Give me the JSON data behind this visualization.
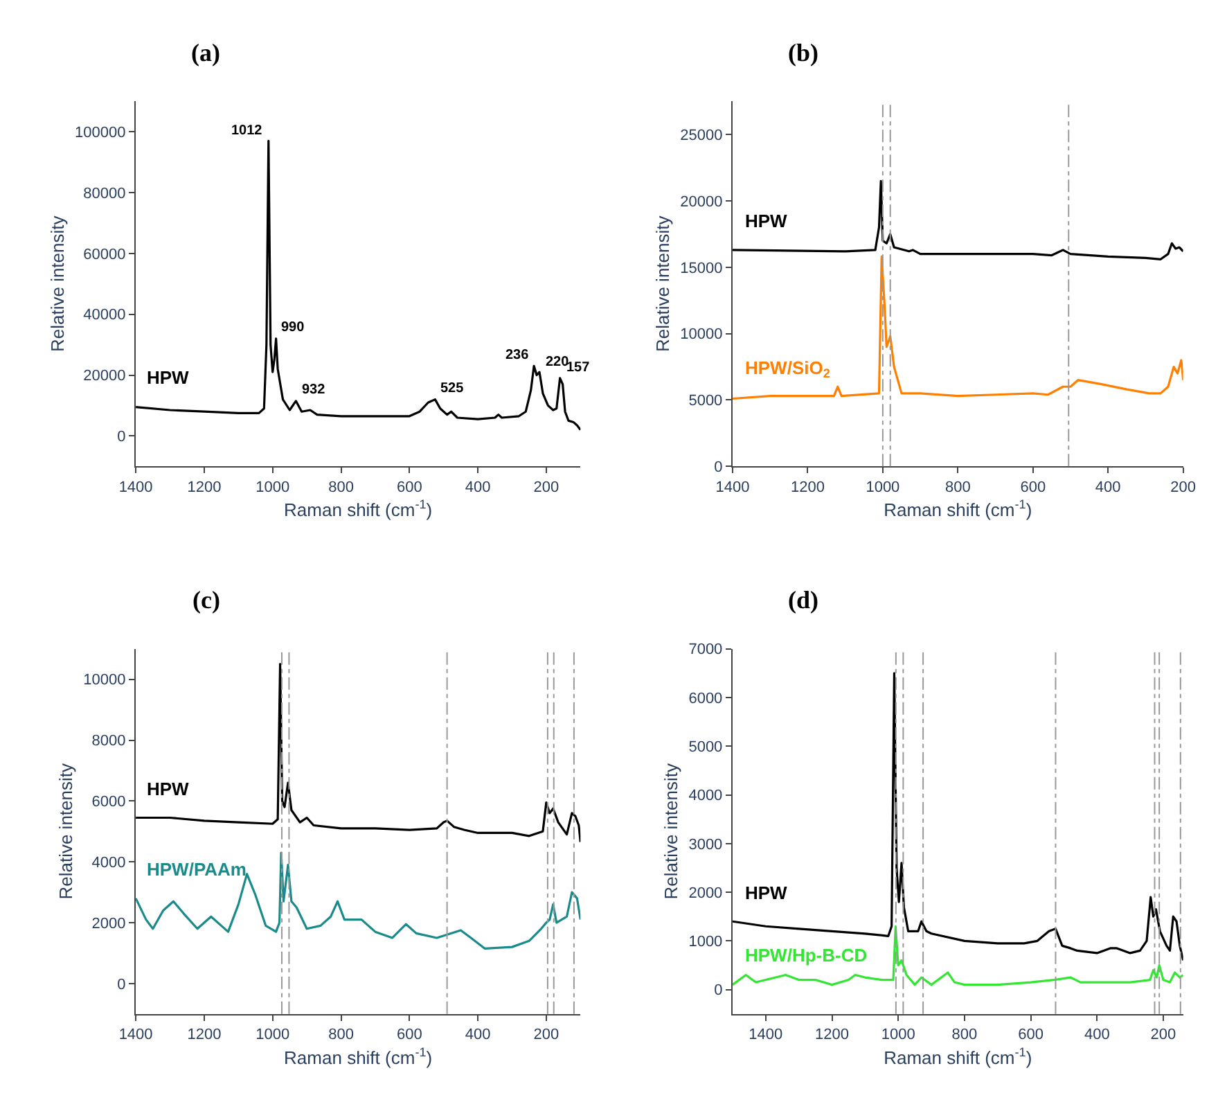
{
  "chart_data": [
    {
      "type": "line",
      "title": "(a)",
      "xlabel": "Raman shift (cm$^{-1}$)",
      "ylabel": "Relative intensity",
      "xlim": [
        1400,
        100
      ],
      "xticks": [
        1400,
        1200,
        1000,
        800,
        600,
        400,
        200
      ],
      "ylim": [
        -10000,
        110000
      ],
      "yticks": [
        0,
        20000,
        40000,
        60000,
        80000,
        100000
      ],
      "grid": false,
      "legend": false,
      "x": [
        1400,
        1300,
        1200,
        1100,
        1040,
        1025,
        1018,
        1012,
        1006,
        1000,
        995,
        990,
        985,
        970,
        950,
        932,
        915,
        890,
        870,
        800,
        700,
        600,
        570,
        545,
        525,
        510,
        490,
        478,
        460,
        400,
        350,
        340,
        330,
        280,
        260,
        245,
        236,
        228,
        220,
        210,
        195,
        180,
        170,
        160,
        152,
        145,
        135,
        120,
        110,
        100
      ],
      "series": [
        {
          "name": "HPW",
          "color": "#000000",
          "values": [
            9500,
            8500,
            8000,
            7500,
            7500,
            9000,
            30000,
            97000,
            30000,
            21000,
            25000,
            32000,
            22000,
            12000,
            8500,
            11500,
            8000,
            8500,
            7000,
            6500,
            6500,
            6500,
            8000,
            11000,
            12000,
            9000,
            7000,
            8000,
            6000,
            5500,
            6000,
            7000,
            6000,
            6500,
            8000,
            15000,
            23000,
            20000,
            21000,
            14000,
            10000,
            8500,
            9000,
            19000,
            17000,
            8000,
            5000,
            4500,
            3500,
            2000
          ]
        }
      ],
      "annotations": [
        {
          "text": "1012",
          "x": 1012,
          "y": 97000
        },
        {
          "text": "990",
          "x": 990,
          "y": 32000
        },
        {
          "text": "932",
          "x": 932,
          "y": 11500
        },
        {
          "text": "525",
          "x": 525,
          "y": 12000
        },
        {
          "text": "236",
          "x": 236,
          "y": 23000
        },
        {
          "text": "220",
          "x": 220,
          "y": 21000
        },
        {
          "text": "157",
          "x": 157,
          "y": 19000
        }
      ]
    },
    {
      "type": "line",
      "title": "(b)",
      "xlabel": "Raman shift (cm$^{-1}$)",
      "ylabel": "Relative intensity",
      "xlim": [
        1400,
        200
      ],
      "xticks": [
        1400,
        1200,
        1000,
        800,
        600,
        400,
        200
      ],
      "ylim": [
        0,
        27500
      ],
      "yticks": [
        0,
        5000,
        10000,
        15000,
        20000,
        25000
      ],
      "grid": false,
      "legend": false,
      "ref_lines": [
        {
          "axis": "x",
          "value": 1000,
          "color": "#999999",
          "line_style": "dashed"
        },
        {
          "axis": "x",
          "value": 980,
          "color": "#999999",
          "line_style": "dashed"
        },
        {
          "axis": "x",
          "value": 505,
          "color": "#999999",
          "line_style": "dashed"
        }
      ],
      "series": [
        {
          "name": "HPW",
          "color": "#000000",
          "x": [
            1400,
            1100,
            1020,
            1010,
            1005,
            1000,
            990,
            980,
            970,
            930,
            920,
            900,
            600,
            550,
            520,
            500,
            400,
            300,
            260,
            240,
            230,
            220,
            210,
            200
          ],
          "values": [
            16300,
            16200,
            16300,
            18000,
            21500,
            17000,
            16800,
            17500,
            16500,
            16200,
            16300,
            16000,
            16000,
            15900,
            16300,
            16000,
            15800,
            15700,
            15600,
            16000,
            16800,
            16400,
            16500,
            16200
          ]
        },
        {
          "name": "HPW/SiO$_{2}$",
          "color": "#ff8000",
          "x": [
            1400,
            1300,
            1200,
            1130,
            1120,
            1110,
            1010,
            1003,
            995,
            990,
            980,
            970,
            950,
            900,
            800,
            700,
            600,
            560,
            520,
            500,
            480,
            420,
            350,
            290,
            260,
            240,
            225,
            215,
            205,
            200
          ],
          "values": [
            5100,
            5300,
            5300,
            5300,
            6000,
            5300,
            5500,
            15800,
            12000,
            9000,
            9800,
            7500,
            5500,
            5500,
            5300,
            5400,
            5500,
            5400,
            6000,
            6000,
            6500,
            6200,
            5800,
            5500,
            5500,
            6000,
            7500,
            7000,
            8000,
            6500
          ]
        }
      ]
    },
    {
      "type": "line",
      "title": "(c)",
      "xlabel": "Raman shift (cm$^{-1}$)",
      "ylabel": "Relative intensity",
      "xlim": [
        1400,
        100
      ],
      "xticks": [
        1400,
        1200,
        1000,
        800,
        600,
        400,
        200
      ],
      "ylim": [
        -1000,
        11000
      ],
      "yticks": [
        0,
        2000,
        4000,
        6000,
        8000,
        10000
      ],
      "grid": false,
      "legend": false,
      "ref_lines": [
        {
          "axis": "x",
          "value": 973,
          "color": "#999999",
          "line_style": "dashed"
        },
        {
          "axis": "x",
          "value": 952,
          "color": "#999999",
          "line_style": "dashed"
        },
        {
          "axis": "x",
          "value": 490,
          "color": "#999999",
          "line_style": "dashed"
        },
        {
          "axis": "x",
          "value": 196,
          "color": "#999999",
          "line_style": "dashed"
        },
        {
          "axis": "x",
          "value": 178,
          "color": "#999999",
          "line_style": "dashed"
        },
        {
          "axis": "x",
          "value": 119,
          "color": "#999999",
          "line_style": "dashed"
        }
      ],
      "series": [
        {
          "name": "HPW",
          "color": "#000000",
          "x": [
            1400,
            1300,
            1200,
            1100,
            1000,
            985,
            978,
            972,
            965,
            955,
            945,
            920,
            900,
            880,
            800,
            700,
            600,
            520,
            500,
            490,
            470,
            440,
            400,
            300,
            250,
            210,
            200,
            190,
            180,
            165,
            140,
            125,
            115,
            105,
            100
          ],
          "values": [
            5450,
            5450,
            5350,
            5300,
            5250,
            5400,
            10500,
            6000,
            5800,
            6600,
            5700,
            5300,
            5450,
            5200,
            5100,
            5100,
            5050,
            5100,
            5300,
            5350,
            5150,
            5050,
            4950,
            4950,
            4850,
            5000,
            5950,
            5600,
            5750,
            5300,
            4900,
            5600,
            5500,
            5200,
            4650
          ]
        },
        {
          "name": "HPW/PAAm",
          "color": "#1a8a8a",
          "x": [
            1400,
            1370,
            1350,
            1320,
            1290,
            1260,
            1220,
            1180,
            1150,
            1130,
            1100,
            1075,
            1050,
            1020,
            990,
            980,
            975,
            968,
            955,
            945,
            930,
            900,
            860,
            830,
            810,
            790,
            740,
            700,
            650,
            610,
            580,
            520,
            450,
            420,
            380,
            300,
            250,
            215,
            200,
            190,
            180,
            170,
            140,
            125,
            110,
            100
          ],
          "values": [
            2800,
            2100,
            1800,
            2400,
            2700,
            2300,
            1800,
            2200,
            1900,
            1700,
            2600,
            3600,
            2900,
            1900,
            1700,
            2000,
            4300,
            2700,
            3900,
            2700,
            2500,
            1800,
            1900,
            2200,
            2700,
            2100,
            2100,
            1700,
            1500,
            1950,
            1650,
            1500,
            1750,
            1500,
            1150,
            1200,
            1400,
            1800,
            2000,
            2100,
            2600,
            2000,
            2200,
            3000,
            2800,
            2100
          ]
        }
      ]
    },
    {
      "type": "line",
      "title": "(d)",
      "xlabel": "Raman shift (cm$^{-1}$)",
      "ylabel": "Relative intensity",
      "xlim": [
        1500,
        140
      ],
      "xticks": [
        1400,
        1200,
        1000,
        800,
        600,
        400,
        200
      ],
      "ylim": [
        -500,
        7000
      ],
      "yticks": [
        0,
        1000,
        2000,
        3000,
        4000,
        5000,
        6000,
        7000
      ],
      "grid": false,
      "legend": false,
      "ref_lines": [
        {
          "axis": "x",
          "value": 1007,
          "color": "#999999",
          "line_style": "dashed"
        },
        {
          "axis": "x",
          "value": 985,
          "color": "#999999",
          "line_style": "dashed"
        },
        {
          "axis": "x",
          "value": 925,
          "color": "#999999",
          "line_style": "dashed"
        },
        {
          "axis": "x",
          "value": 525,
          "color": "#999999",
          "line_style": "dashed"
        },
        {
          "axis": "x",
          "value": 226,
          "color": "#999999",
          "line_style": "dashed"
        },
        {
          "axis": "x",
          "value": 212,
          "color": "#999999",
          "line_style": "dashed"
        },
        {
          "axis": "x",
          "value": 148,
          "color": "#999999",
          "line_style": "dashed"
        }
      ],
      "series": [
        {
          "name": "HPW",
          "color": "#000000",
          "x": [
            1500,
            1400,
            1300,
            1200,
            1100,
            1030,
            1020,
            1012,
            1005,
            998,
            990,
            983,
            970,
            940,
            930,
            915,
            900,
            800,
            700,
            620,
            580,
            545,
            525,
            505,
            480,
            460,
            400,
            360,
            340,
            300,
            270,
            250,
            238,
            230,
            222,
            210,
            190,
            180,
            170,
            160,
            150,
            140
          ],
          "values": [
            1400,
            1300,
            1250,
            1200,
            1150,
            1100,
            1300,
            6500,
            2500,
            1800,
            2600,
            1700,
            1200,
            1200,
            1400,
            1200,
            1150,
            1000,
            950,
            950,
            1000,
            1200,
            1250,
            900,
            850,
            800,
            750,
            850,
            850,
            750,
            800,
            1000,
            1900,
            1500,
            1650,
            1200,
            900,
            800,
            1500,
            1400,
            900,
            600
          ]
        },
        {
          "name": "HPW/Hp-B-CD",
          "color": "#33e633",
          "x": [
            1500,
            1460,
            1430,
            1400,
            1340,
            1300,
            1250,
            1200,
            1150,
            1130,
            1100,
            1050,
            1015,
            1008,
            1000,
            990,
            975,
            950,
            930,
            900,
            850,
            830,
            800,
            700,
            600,
            530,
            480,
            450,
            400,
            300,
            240,
            230,
            220,
            212,
            200,
            180,
            165,
            150,
            140
          ],
          "values": [
            100,
            300,
            150,
            200,
            300,
            200,
            200,
            100,
            200,
            300,
            250,
            200,
            200,
            1300,
            500,
            600,
            300,
            100,
            250,
            100,
            350,
            150,
            100,
            100,
            150,
            200,
            250,
            150,
            150,
            150,
            200,
            400,
            250,
            500,
            200,
            150,
            350,
            250,
            300
          ]
        }
      ]
    }
  ]
}
